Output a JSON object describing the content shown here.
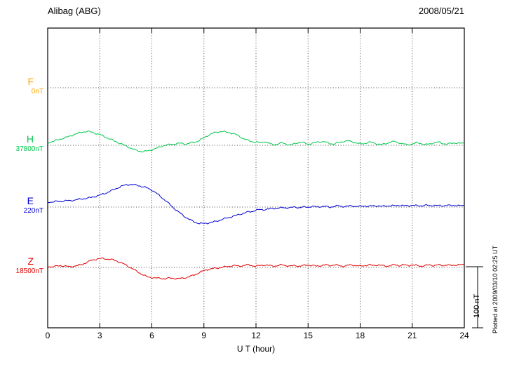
{
  "header": {
    "station": "Alibag (ABG)",
    "date": "2008/05/21"
  },
  "axis": {
    "x_label": "U T (hour)",
    "tick_hours": [
      0,
      3,
      6,
      9,
      12,
      15,
      18,
      21,
      24
    ],
    "tick_labels": [
      "0",
      "3",
      "6",
      "9",
      "12",
      "15",
      "18",
      "21",
      "24"
    ]
  },
  "scale_bar": {
    "label": "100 nT",
    "nT": 100
  },
  "footer_note": "Plotted at 2009/03/10 02:25 UT",
  "chart_data": {
    "type": "line",
    "title": "Alibag (ABG) magnetogram 2008/05/21",
    "xlabel": "U T (hour)",
    "xlim": [
      0,
      24
    ],
    "sample_step_hours": 0.25,
    "grid": "dotted",
    "legend": "none",
    "note": "values_nT are offsets in nT from each channel baseline_nT, sampled every 0.25 h; F channel has no plotted trace (flat 0nT baseline only)",
    "series": [
      {
        "name": "F",
        "baseline_label": "0nT",
        "baseline_nT": 0,
        "color": "#FFA500",
        "values_nT": []
      },
      {
        "name": "H",
        "baseline_label": "37800nT",
        "baseline_nT": 37800,
        "color": "#00C84B",
        "values_nT": [
          4,
          6,
          8,
          10,
          12,
          14,
          17,
          19,
          21,
          22,
          21,
          19,
          17,
          14,
          11,
          8,
          5,
          2,
          -1,
          -4,
          -7,
          -9,
          -10,
          -9,
          -7,
          -5,
          -2,
          0,
          1,
          2,
          3,
          3,
          2,
          4,
          5,
          8,
          12,
          16,
          19,
          21,
          22,
          21,
          20,
          18,
          15,
          11,
          8,
          6,
          5,
          4,
          6,
          3,
          1,
          2,
          4,
          2,
          0,
          3,
          5,
          4,
          2,
          3,
          5,
          6,
          5,
          3,
          2,
          4,
          6,
          7,
          6,
          4,
          2,
          3,
          5,
          4,
          2,
          1,
          3,
          5,
          6,
          4,
          2,
          1,
          2,
          4,
          3,
          1,
          2,
          4,
          5,
          3,
          2,
          3,
          4,
          3,
          3
        ]
      },
      {
        "name": "E",
        "baseline_label": "220nT",
        "baseline_nT": 220,
        "color": "#0000D0",
        "values_nT": [
          8,
          8,
          9,
          9,
          10,
          10,
          11,
          12,
          13,
          14,
          15,
          17,
          19,
          21,
          24,
          27,
          30,
          33,
          35,
          36,
          35,
          34,
          32,
          30,
          27,
          22,
          17,
          11,
          5,
          -1,
          -7,
          -12,
          -17,
          -21,
          -24,
          -26,
          -26,
          -25,
          -24,
          -22,
          -20,
          -18,
          -16,
          -14,
          -12,
          -10,
          -8,
          -7,
          -5,
          -4,
          -4,
          -3,
          -2,
          -2,
          -1,
          -1,
          -1,
          0,
          -1,
          0,
          0,
          1,
          0,
          1,
          1,
          0,
          1,
          2,
          1,
          1,
          2,
          1,
          1,
          2,
          1,
          2,
          2,
          1,
          2,
          2,
          2,
          3,
          2,
          2,
          3,
          2,
          2,
          3,
          2,
          3,
          2,
          2,
          3,
          2,
          3,
          2,
          2
        ]
      },
      {
        "name": "Z",
        "baseline_label": "18500nT",
        "baseline_nT": 18500,
        "color": "#E00000",
        "values_nT": [
          2,
          1,
          2,
          3,
          2,
          1,
          2,
          3,
          5,
          8,
          11,
          13,
          14,
          14,
          13,
          12,
          10,
          7,
          4,
          0,
          -4,
          -8,
          -12,
          -15,
          -16,
          -17,
          -17,
          -18,
          -17,
          -17,
          -18,
          -17,
          -16,
          -14,
          -11,
          -8,
          -5,
          -3,
          -2,
          -1,
          0,
          1,
          2,
          3,
          2,
          3,
          4,
          3,
          2,
          3,
          4,
          3,
          2,
          3,
          4,
          3,
          2,
          3,
          2,
          3,
          4,
          3,
          2,
          3,
          4,
          3,
          4,
          3,
          2,
          3,
          4,
          3,
          2,
          3,
          4,
          3,
          4,
          3,
          2,
          3,
          4,
          3,
          4,
          3,
          4,
          3,
          2,
          3,
          4,
          3,
          4,
          3,
          4,
          3,
          4,
          4,
          4
        ]
      }
    ]
  }
}
